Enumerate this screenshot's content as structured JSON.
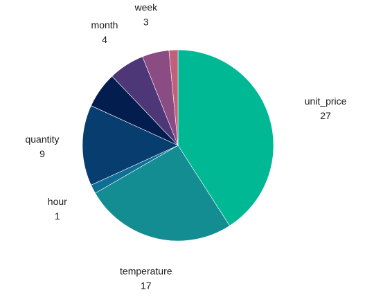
{
  "chart_data": {
    "type": "pie",
    "title": "",
    "start_angle_deg": 0,
    "direction": "clockwise",
    "slices": [
      {
        "label": "unit_price",
        "value": 27,
        "color": "#00b894"
      },
      {
        "label": "temperature",
        "value": 17,
        "color": "#138d92"
      },
      {
        "label": "hour",
        "value": 1,
        "color": "#0f6e94"
      },
      {
        "label": "quantity",
        "value": 9,
        "color": "#083d70"
      },
      {
        "label": "",
        "value": 4,
        "color": "#021d4e"
      },
      {
        "label": "month",
        "value": 4,
        "color": "#4d3776"
      },
      {
        "label": "week",
        "value": 3,
        "color": "#8a4c82"
      },
      {
        "label": "",
        "value": 1,
        "color": "#c0607a"
      }
    ],
    "legend": "none",
    "data_labels": "outside"
  }
}
